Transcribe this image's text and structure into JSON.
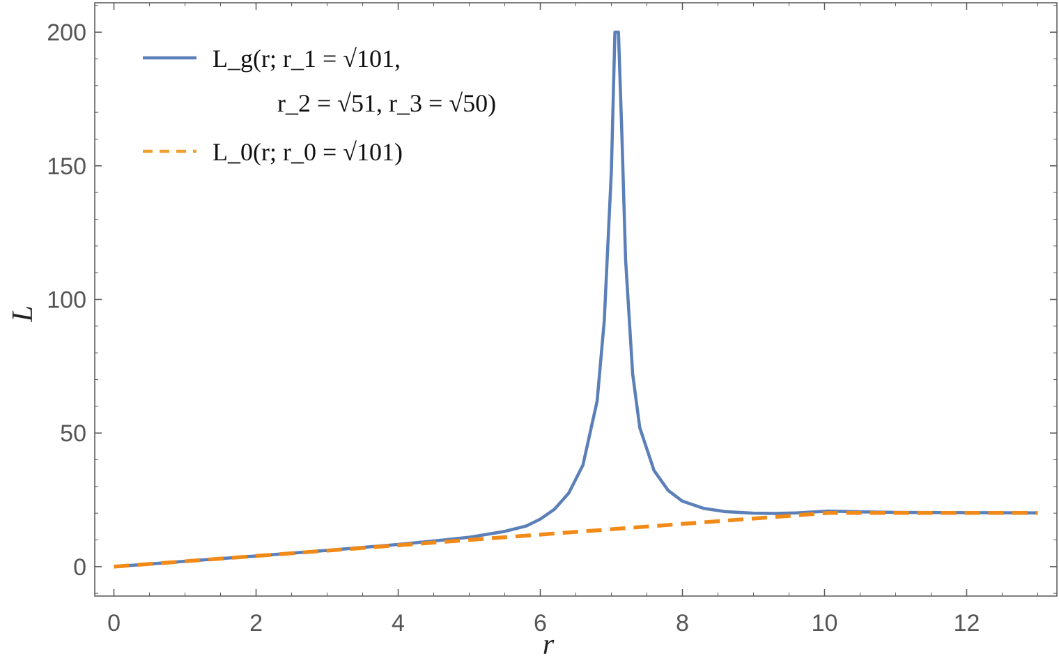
{
  "chart_data": {
    "type": "line",
    "xlabel": "r",
    "ylabel": "L",
    "xlim": [
      -0.27,
      13.27
    ],
    "ylim": [
      -11,
      211
    ],
    "xticks": [
      0,
      2,
      4,
      6,
      8,
      10,
      12
    ],
    "yticks": [
      0,
      50,
      100,
      150,
      200
    ],
    "xtick_labels": [
      "0",
      "2",
      "4",
      "6",
      "8",
      "10",
      "12"
    ],
    "ytick_labels": [
      "0",
      "50",
      "100",
      "150",
      "200"
    ],
    "grid": false,
    "legend_position": "top-left",
    "legend": [
      {
        "line1": "L_g(r; r_1 = √101,",
        "line2": "r_2 = √51, r_3 = √50)"
      },
      {
        "line1": "L_0(r; r_0 = √101)"
      }
    ],
    "series": [
      {
        "style": "solid",
        "color": "#5b7fb8",
        "x": [
          0,
          1,
          2,
          3,
          4,
          4.5,
          5,
          5.5,
          5.8,
          6,
          6.2,
          6.4,
          6.6,
          6.8,
          6.9,
          7.0,
          7.05,
          7.1,
          7.15,
          7.2,
          7.3,
          7.4,
          7.6,
          7.8,
          8.0,
          8.3,
          8.6,
          9.0,
          9.3,
          9.6,
          10.0,
          10.05,
          10.5,
          11,
          12,
          13
        ],
        "y": [
          0,
          2,
          4,
          6.1,
          8.3,
          9.6,
          11,
          13.2,
          15.2,
          17.8,
          21.5,
          27.5,
          38,
          62,
          92,
          148,
          200,
          200,
          160,
          115,
          72,
          52,
          36,
          28.5,
          24.5,
          21.8,
          20.6,
          20.0,
          19.9,
          20.1,
          20.7,
          20.8,
          20.5,
          20.3,
          20.2,
          20.1
        ]
      },
      {
        "style": "dashed",
        "color": "#f28a17",
        "x": [
          0,
          10.05,
          13
        ],
        "y": [
          0,
          20.1,
          20.1
        ]
      }
    ]
  }
}
